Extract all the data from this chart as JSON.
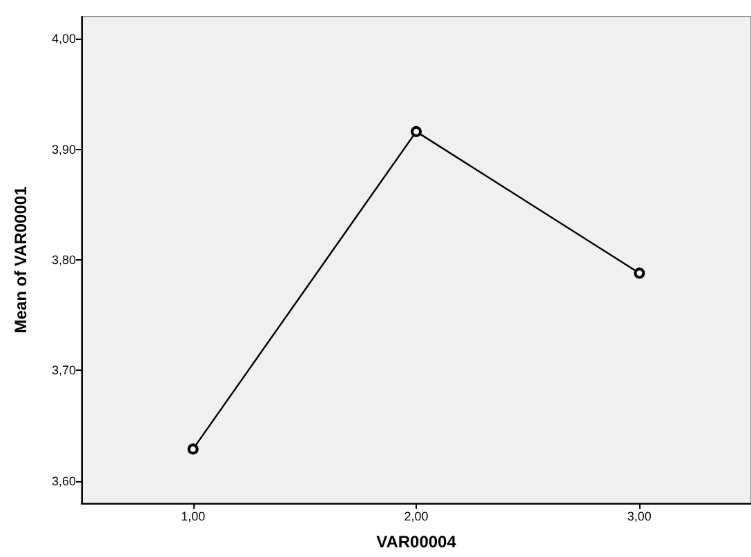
{
  "chart_data": {
    "type": "line",
    "xlabel": "VAR00004",
    "ylabel": "Mean of VAR00001",
    "categories": [
      "1,00",
      "2,00",
      "3,00"
    ],
    "series": [
      {
        "color": "#000000",
        "values": [
          3.629,
          3.916,
          3.788
        ]
      }
    ],
    "ylim": [
      3.58,
      4.02
    ],
    "yticks": [
      {
        "value": 3.6,
        "label": "3,60"
      },
      {
        "value": 3.7,
        "label": "3,70"
      },
      {
        "value": 3.8,
        "label": "3,80"
      },
      {
        "value": 3.9,
        "label": "3,90"
      },
      {
        "value": 4.0,
        "label": "4,00"
      }
    ],
    "grid": false,
    "marker": "circle",
    "line_style": "solid"
  }
}
